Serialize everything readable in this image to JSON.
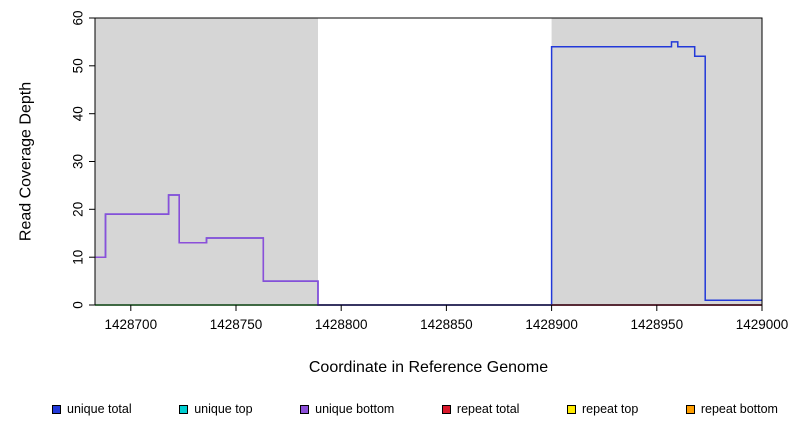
{
  "chart_data": {
    "type": "step-line",
    "title": "",
    "xlabel": "Coordinate in Reference Genome",
    "ylabel": "Read Coverage Depth",
    "xlim": [
      1428683,
      1429000
    ],
    "ylim": [
      0,
      60
    ],
    "x_ticks": [
      1428700,
      1428750,
      1428800,
      1428850,
      1428900,
      1428950,
      1429000
    ],
    "y_ticks": [
      0,
      10,
      20,
      30,
      40,
      50,
      60
    ],
    "grid": false,
    "background": "#ffffff",
    "shaded_regions": [
      {
        "name": "repeat-region-left",
        "x0": 1428683,
        "x1": 1428789,
        "color": "#d6d6d6"
      },
      {
        "name": "repeat-region-right",
        "x0": 1428900,
        "x1": 1429000,
        "color": "#d6d6d6"
      }
    ],
    "series": [
      {
        "name": "repeat bottom",
        "color": "#FF9E00",
        "steps": [
          [
            1428683,
            0
          ]
        ]
      },
      {
        "name": "repeat top",
        "color": "#FFEB00",
        "steps": [
          [
            1428683,
            0
          ]
        ]
      },
      {
        "name": "unique top",
        "color": "#00CED1",
        "steps": [
          [
            1428683,
            0
          ]
        ]
      },
      {
        "name": "unique total",
        "color": "#2239D9",
        "steps": [
          [
            1428683,
            10
          ],
          [
            1428688,
            19
          ],
          [
            1428718,
            23
          ],
          [
            1428723,
            13
          ],
          [
            1428736,
            14
          ],
          [
            1428763,
            5
          ],
          [
            1428789,
            0
          ],
          [
            1428900,
            54
          ],
          [
            1428957,
            55
          ],
          [
            1428960,
            54
          ],
          [
            1428968,
            52
          ],
          [
            1428973,
            1
          ]
        ]
      },
      {
        "name": "unique bottom",
        "color": "#8C4FD9",
        "steps": [
          [
            1428683,
            10
          ],
          [
            1428688,
            19
          ],
          [
            1428718,
            23
          ],
          [
            1428723,
            13
          ],
          [
            1428736,
            14
          ],
          [
            1428763,
            5
          ],
          [
            1428789,
            0
          ]
        ]
      },
      {
        "name": "repeat total",
        "color": "#D9182B",
        "steps": [
          [
            1428900,
            0
          ]
        ]
      }
    ]
  },
  "legend": {
    "items": [
      {
        "label": "unique total",
        "color": "#2239D9"
      },
      {
        "label": "unique top",
        "color": "#00CED1"
      },
      {
        "label": "unique bottom",
        "color": "#8C4FD9"
      },
      {
        "label": "repeat total",
        "color": "#D9182B"
      },
      {
        "label": "repeat top",
        "color": "#FFEB00"
      },
      {
        "label": "repeat bottom",
        "color": "#FF9E00"
      }
    ]
  }
}
